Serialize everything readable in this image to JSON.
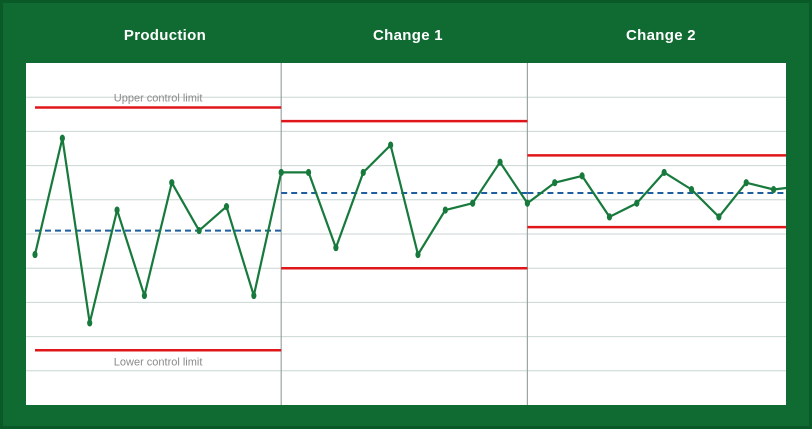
{
  "colors": {
    "background": "#0f6b32",
    "plot_background": "#ffffff",
    "gridline": "#c9d6d4",
    "phase_divider": "#9aa5a3",
    "data_line": "#177a3c",
    "control_limit": "#e0171a",
    "center_line": "#1f5fa0"
  },
  "chart_data": {
    "type": "line",
    "title": "",
    "xlabel": "",
    "ylabel": "",
    "ylim": [
      0,
      10
    ],
    "grid": "horizontal",
    "phases": [
      {
        "name": "Production",
        "x_range": [
          0,
          9
        ],
        "ucl": 8.7,
        "center": 5.1,
        "lcl": 1.6,
        "ucl_label": "Upper control limit",
        "lcl_label": "Lower control limit"
      },
      {
        "name": "Change 1",
        "x_range": [
          9,
          18
        ],
        "ucl": 8.3,
        "center": 6.2,
        "lcl": 4.0,
        "ucl_label": "",
        "lcl_label": ""
      },
      {
        "name": "Change 2",
        "x_range": [
          18,
          27
        ],
        "ucl": 7.3,
        "center": 6.2,
        "lcl": 5.2,
        "ucl_label": "",
        "lcl_label": ""
      }
    ],
    "series": [
      {
        "x": [
          0,
          1,
          2,
          3,
          4,
          5,
          6,
          7,
          8,
          9,
          10,
          11,
          12,
          13,
          14,
          15,
          16,
          17,
          18,
          19,
          20,
          21,
          22,
          23,
          24,
          25,
          26,
          27,
          28
        ],
        "values": [
          4.4,
          7.8,
          2.4,
          5.7,
          3.2,
          6.5,
          5.1,
          5.8,
          3.2,
          6.8,
          6.8,
          4.6,
          6.8,
          7.6,
          4.4,
          5.7,
          5.9,
          7.1,
          5.9,
          6.5,
          6.7,
          5.5,
          5.9,
          6.8,
          6.3,
          5.5,
          6.5,
          6.3,
          6.4
        ]
      }
    ]
  }
}
